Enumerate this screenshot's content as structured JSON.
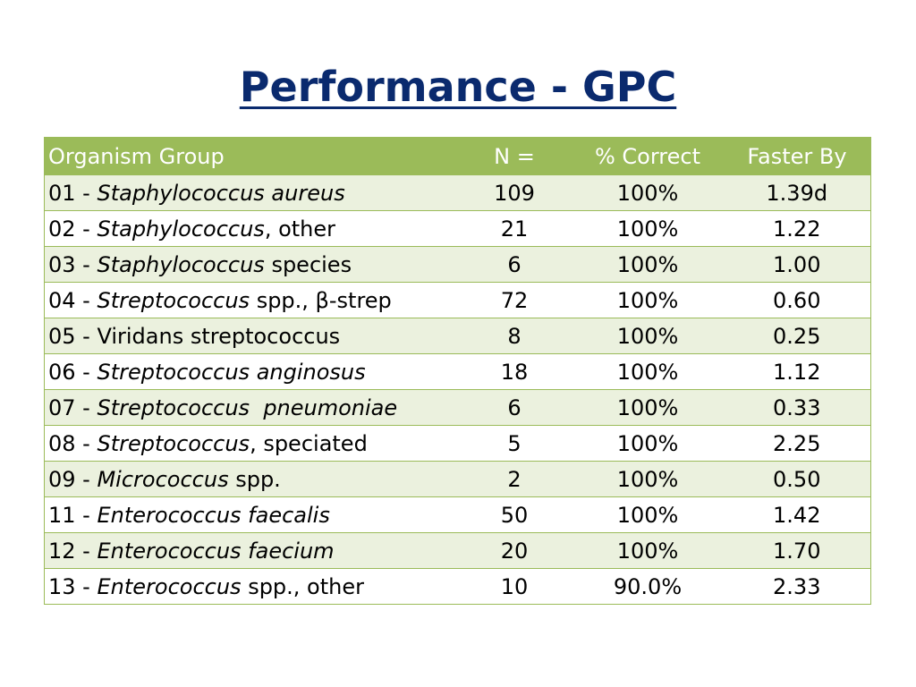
{
  "slide": {
    "title": "Performance - GPC"
  },
  "table": {
    "headers": {
      "organism_group": "Organism Group",
      "n": "N =",
      "percent_correct": "% Correct",
      "faster_by": "Faster By"
    },
    "rows": [
      {
        "prefix": "01 - ",
        "italic": "Staphylococcus aureus",
        "suffix": "",
        "n": "109",
        "percent_correct": "100%",
        "faster_by": "1.39d"
      },
      {
        "prefix": "02 - ",
        "italic": "Staphylococcus",
        "suffix": ", other",
        "n": "21",
        "percent_correct": "100%",
        "faster_by": "1.22"
      },
      {
        "prefix": "03 - ",
        "italic": "Staphylococcus",
        "suffix": " species",
        "n": "6",
        "percent_correct": "100%",
        "faster_by": "1.00"
      },
      {
        "prefix": "04 - ",
        "italic": "Streptococcus",
        "suffix": " spp., β-strep",
        "n": "72",
        "percent_correct": "100%",
        "faster_by": "0.60"
      },
      {
        "prefix": "05 - Viridans streptococcus",
        "italic": "",
        "suffix": "",
        "n": "8",
        "percent_correct": "100%",
        "faster_by": "0.25"
      },
      {
        "prefix": "06 - ",
        "italic": "Streptococcus anginosus",
        "suffix": "",
        "n": "18",
        "percent_correct": "100%",
        "faster_by": "1.12"
      },
      {
        "prefix": "07 - ",
        "italic": "Streptococcus  pneumoniae",
        "suffix": "",
        "n": "6",
        "percent_correct": "100%",
        "faster_by": "0.33"
      },
      {
        "prefix": "08 - ",
        "italic": "Streptococcus",
        "suffix": ", speciated",
        "n": "5",
        "percent_correct": "100%",
        "faster_by": "2.25"
      },
      {
        "prefix": "09 - ",
        "italic": "Micrococcus",
        "suffix": " spp.",
        "n": "2",
        "percent_correct": "100%",
        "faster_by": "0.50"
      },
      {
        "prefix": "11 - ",
        "italic": "Enterococcus faecalis",
        "suffix": "",
        "n": "50",
        "percent_correct": "100%",
        "faster_by": "1.42"
      },
      {
        "prefix": "12 - ",
        "italic": "Enterococcus faecium",
        "suffix": "",
        "n": "20",
        "percent_correct": "100%",
        "faster_by": "1.70"
      },
      {
        "prefix": "13 - ",
        "italic": "Enterococcus",
        "suffix": " spp., other",
        "n": "10",
        "percent_correct": "90.0%",
        "faster_by": "2.33"
      }
    ]
  },
  "colors": {
    "title": "#0a2a6e",
    "header_fill": "#9bbb59",
    "row_band": "#ebf1de",
    "border": "#9bbb59"
  }
}
